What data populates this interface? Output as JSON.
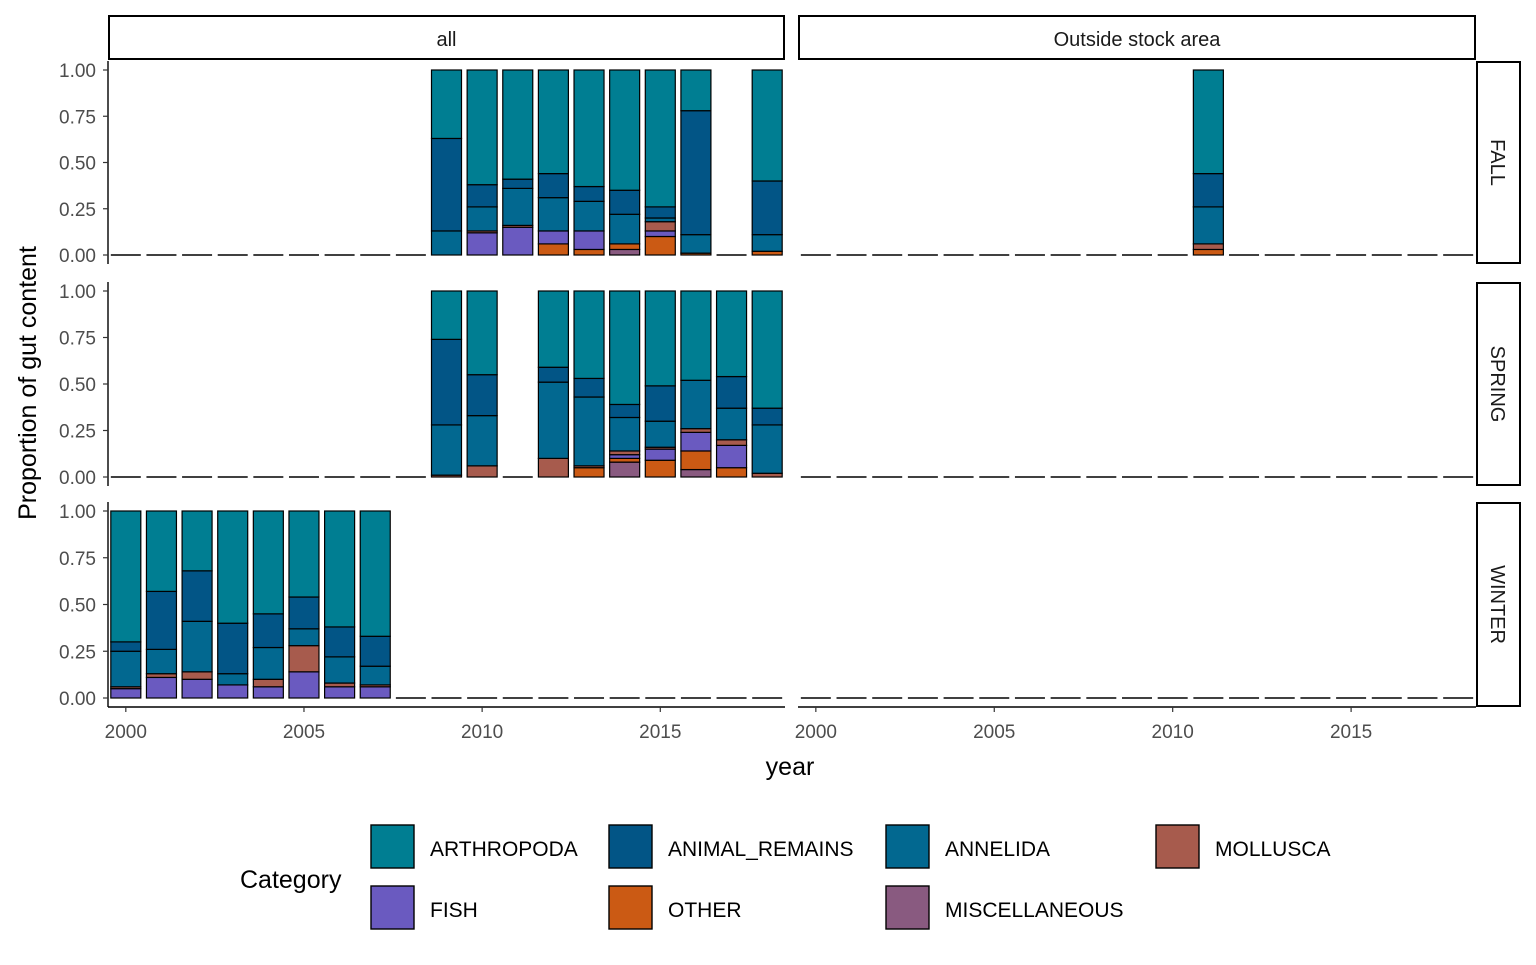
{
  "chart_data": {
    "type": "bar",
    "stacked": true,
    "xlabel": "year",
    "ylabel": "Proportion of gut content",
    "ylim": [
      0,
      1
    ],
    "xlim": [
      1999.5,
      2018.5
    ],
    "x_ticks": [
      2000,
      2005,
      2010,
      2015
    ],
    "x_tick_labels": [
      "2000",
      "2005",
      "2010",
      "2015"
    ],
    "y_ticks": [
      0,
      0.25,
      0.5,
      0.75,
      1
    ],
    "y_tick_labels": [
      "0.00",
      "0.25",
      "0.50",
      "0.75",
      "1.00"
    ],
    "grid": false,
    "facet_columns": [
      "all",
      "Outside stock area"
    ],
    "facet_rows": [
      "FALL",
      "SPRING",
      "WINTER"
    ],
    "legend": {
      "title": "Category",
      "position": "bottom",
      "entries": [
        "ARTHROPODA",
        "ANIMAL_REMAINS",
        "ANNELIDA",
        "MOLLUSCA",
        "FISH",
        "OTHER",
        "MISCELLANEOUS"
      ]
    },
    "colors": {
      "ARTHROPODA": "#007e92",
      "ANIMAL_REMAINS": "#025586",
      "ANNELIDA": "#026890",
      "MOLLUSCA": "#a75b4d",
      "FISH": "#6a5ac0",
      "OTHER": "#cb5a14",
      "MISCELLANEOUS": "#895a80"
    },
    "stack_order_bottom_to_top": [
      "MISCELLANEOUS",
      "OTHER",
      "FISH",
      "MOLLUSCA",
      "ANNELIDA",
      "ANIMAL_REMAINS",
      "ARTHROPODA"
    ],
    "panels": [
      {
        "column": "all",
        "row": "FALL",
        "bars": [
          {
            "year": 2009,
            "MISCELLANEOUS": 0,
            "OTHER": 0,
            "FISH": 0,
            "MOLLUSCA": 0,
            "ANNELIDA": 0.13,
            "ANIMAL_REMAINS": 0.5,
            "ARTHROPODA": 0.37
          },
          {
            "year": 2010,
            "MISCELLANEOUS": 0,
            "OTHER": 0,
            "FISH": 0.12,
            "MOLLUSCA": 0.01,
            "ANNELIDA": 0.13,
            "ANIMAL_REMAINS": 0.12,
            "ARTHROPODA": 0.62
          },
          {
            "year": 2011,
            "MISCELLANEOUS": 0,
            "OTHER": 0,
            "FISH": 0.15,
            "MOLLUSCA": 0.01,
            "ANNELIDA": 0.2,
            "ANIMAL_REMAINS": 0.05,
            "ARTHROPODA": 0.59
          },
          {
            "year": 2012,
            "MISCELLANEOUS": 0,
            "OTHER": 0.06,
            "FISH": 0.07,
            "MOLLUSCA": 0,
            "ANNELIDA": 0.18,
            "ANIMAL_REMAINS": 0.13,
            "ARTHROPODA": 0.56
          },
          {
            "year": 2013,
            "MISCELLANEOUS": 0,
            "OTHER": 0.03,
            "FISH": 0.1,
            "MOLLUSCA": 0,
            "ANNELIDA": 0.16,
            "ANIMAL_REMAINS": 0.08,
            "ARTHROPODA": 0.63
          },
          {
            "year": 2014,
            "MISCELLANEOUS": 0.03,
            "OTHER": 0.03,
            "FISH": 0,
            "MOLLUSCA": 0,
            "ANNELIDA": 0.16,
            "ANIMAL_REMAINS": 0.13,
            "ARTHROPODA": 0.65
          },
          {
            "year": 2015,
            "MISCELLANEOUS": 0,
            "OTHER": 0.1,
            "FISH": 0.03,
            "MOLLUSCA": 0.05,
            "ANNELIDA": 0.02,
            "ANIMAL_REMAINS": 0.06,
            "ARTHROPODA": 0.74
          },
          {
            "year": 2016,
            "MISCELLANEOUS": 0,
            "OTHER": 0.01,
            "FISH": 0,
            "MOLLUSCA": 0,
            "ANNELIDA": 0.1,
            "ANIMAL_REMAINS": 0.67,
            "ARTHROPODA": 0.22
          },
          {
            "year": 2018,
            "MISCELLANEOUS": 0,
            "OTHER": 0.02,
            "FISH": 0,
            "MOLLUSCA": 0,
            "ANNELIDA": 0.09,
            "ANIMAL_REMAINS": 0.29,
            "ARTHROPODA": 0.6
          }
        ],
        "zero_years": [
          2000,
          2001,
          2002,
          2003,
          2004,
          2005,
          2006,
          2007,
          2008,
          2017
        ]
      },
      {
        "column": "Outside stock area",
        "row": "FALL",
        "bars": [
          {
            "year": 2011,
            "MISCELLANEOUS": 0,
            "OTHER": 0.03,
            "FISH": 0,
            "MOLLUSCA": 0.03,
            "ANNELIDA": 0.2,
            "ANIMAL_REMAINS": 0.18,
            "ARTHROPODA": 0.56
          }
        ],
        "zero_years": [
          2000,
          2001,
          2002,
          2003,
          2004,
          2005,
          2006,
          2007,
          2008,
          2009,
          2010,
          2012,
          2013,
          2014,
          2015,
          2016,
          2017,
          2018
        ]
      },
      {
        "column": "all",
        "row": "SPRING",
        "bars": [
          {
            "year": 2009,
            "MISCELLANEOUS": 0,
            "OTHER": 0,
            "FISH": 0,
            "MOLLUSCA": 0.01,
            "ANNELIDA": 0.27,
            "ANIMAL_REMAINS": 0.46,
            "ARTHROPODA": 0.26
          },
          {
            "year": 2010,
            "MISCELLANEOUS": 0,
            "OTHER": 0,
            "FISH": 0,
            "MOLLUSCA": 0.06,
            "ANNELIDA": 0.27,
            "ANIMAL_REMAINS": 0.22,
            "ARTHROPODA": 0.45
          },
          {
            "year": 2012,
            "MISCELLANEOUS": 0,
            "OTHER": 0,
            "FISH": 0,
            "MOLLUSCA": 0.1,
            "ANNELIDA": 0.41,
            "ANIMAL_REMAINS": 0.08,
            "ARTHROPODA": 0.41
          },
          {
            "year": 2013,
            "MISCELLANEOUS": 0,
            "OTHER": 0.05,
            "FISH": 0,
            "MOLLUSCA": 0.01,
            "ANNELIDA": 0.37,
            "ANIMAL_REMAINS": 0.1,
            "ARTHROPODA": 0.47
          },
          {
            "year": 2014,
            "MISCELLANEOUS": 0.08,
            "OTHER": 0.02,
            "FISH": 0.02,
            "MOLLUSCA": 0.02,
            "ANNELIDA": 0.18,
            "ANIMAL_REMAINS": 0.07,
            "ARTHROPODA": 0.61
          },
          {
            "year": 2015,
            "MISCELLANEOUS": 0,
            "OTHER": 0.09,
            "FISH": 0.06,
            "MOLLUSCA": 0.01,
            "ANNELIDA": 0.14,
            "ANIMAL_REMAINS": 0.19,
            "ARTHROPODA": 0.51
          },
          {
            "year": 2016,
            "MISCELLANEOUS": 0.04,
            "OTHER": 0.1,
            "FISH": 0.1,
            "MOLLUSCA": 0.02,
            "ANNELIDA": 0.26,
            "ANIMAL_REMAINS": 0,
            "ARTHROPODA": 0.48
          },
          {
            "year": 2017,
            "MISCELLANEOUS": 0,
            "OTHER": 0.05,
            "FISH": 0.12,
            "MOLLUSCA": 0.03,
            "ANNELIDA": 0.17,
            "ANIMAL_REMAINS": 0.17,
            "ARTHROPODA": 0.46
          },
          {
            "year": 2018,
            "MISCELLANEOUS": 0,
            "OTHER": 0,
            "FISH": 0,
            "MOLLUSCA": 0.02,
            "ANNELIDA": 0.26,
            "ANIMAL_REMAINS": 0.09,
            "ARTHROPODA": 0.63
          }
        ],
        "zero_years": [
          2000,
          2001,
          2002,
          2003,
          2004,
          2005,
          2006,
          2007,
          2008,
          2011
        ]
      },
      {
        "column": "Outside stock area",
        "row": "SPRING",
        "bars": [],
        "zero_years": [
          2000,
          2001,
          2002,
          2003,
          2004,
          2005,
          2006,
          2007,
          2008,
          2009,
          2010,
          2011,
          2012,
          2013,
          2014,
          2015,
          2016,
          2017,
          2018
        ]
      },
      {
        "column": "all",
        "row": "WINTER",
        "bars": [
          {
            "year": 2000,
            "MISCELLANEOUS": 0,
            "OTHER": 0,
            "FISH": 0.05,
            "MOLLUSCA": 0.01,
            "ANNELIDA": 0.19,
            "ANIMAL_REMAINS": 0.05,
            "ARTHROPODA": 0.7
          },
          {
            "year": 2001,
            "MISCELLANEOUS": 0,
            "OTHER": 0,
            "FISH": 0.11,
            "MOLLUSCA": 0.02,
            "ANNELIDA": 0.13,
            "ANIMAL_REMAINS": 0.31,
            "ARTHROPODA": 0.43
          },
          {
            "year": 2002,
            "MISCELLANEOUS": 0,
            "OTHER": 0,
            "FISH": 0.1,
            "MOLLUSCA": 0.04,
            "ANNELIDA": 0.27,
            "ANIMAL_REMAINS": 0.27,
            "ARTHROPODA": 0.32
          },
          {
            "year": 2003,
            "MISCELLANEOUS": 0,
            "OTHER": 0,
            "FISH": 0.07,
            "MOLLUSCA": 0,
            "ANNELIDA": 0.06,
            "ANIMAL_REMAINS": 0.27,
            "ARTHROPODA": 0.6
          },
          {
            "year": 2004,
            "MISCELLANEOUS": 0,
            "OTHER": 0,
            "FISH": 0.06,
            "MOLLUSCA": 0.04,
            "ANNELIDA": 0.17,
            "ANIMAL_REMAINS": 0.18,
            "ARTHROPODA": 0.55
          },
          {
            "year": 2005,
            "MISCELLANEOUS": 0,
            "OTHER": 0,
            "FISH": 0.14,
            "MOLLUSCA": 0.14,
            "ANNELIDA": 0.09,
            "ANIMAL_REMAINS": 0.17,
            "ARTHROPODA": 0.46
          },
          {
            "year": 2006,
            "MISCELLANEOUS": 0,
            "OTHER": 0,
            "FISH": 0.06,
            "MOLLUSCA": 0.02,
            "ANNELIDA": 0.14,
            "ANIMAL_REMAINS": 0.16,
            "ARTHROPODA": 0.62
          },
          {
            "year": 2007,
            "MISCELLANEOUS": 0,
            "OTHER": 0,
            "FISH": 0.06,
            "MOLLUSCA": 0.01,
            "ANNELIDA": 0.1,
            "ANIMAL_REMAINS": 0.16,
            "ARTHROPODA": 0.67
          }
        ],
        "zero_years": [
          2008,
          2009,
          2010,
          2011,
          2012,
          2013,
          2014,
          2015,
          2016,
          2017,
          2018
        ]
      },
      {
        "column": "Outside stock area",
        "row": "WINTER",
        "bars": [],
        "zero_years": [
          2000,
          2001,
          2002,
          2003,
          2004,
          2005,
          2006,
          2007,
          2008,
          2009,
          2010,
          2011,
          2012,
          2013,
          2014,
          2015,
          2016,
          2017,
          2018
        ]
      }
    ]
  }
}
